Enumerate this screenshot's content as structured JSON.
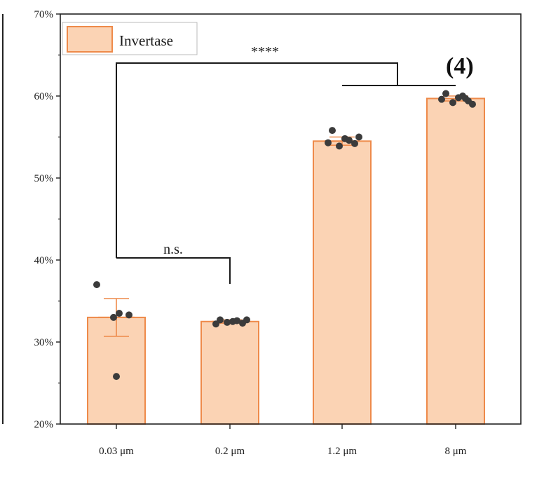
{
  "chart_data": {
    "type": "bar",
    "categories": [
      "0.03 μm",
      "0.2 μm",
      "1.2 μm",
      "8 μm"
    ],
    "series": [
      {
        "name": "Invertase",
        "values": [
          33.0,
          32.5,
          54.5,
          59.7
        ],
        "errors": [
          2.3,
          0.2,
          0.5,
          0.3
        ],
        "points": [
          [
            37.0,
            33.5,
            33.3,
            33.0,
            25.8
          ],
          [
            32.7,
            32.5,
            32.3,
            32.4,
            32.6,
            32.2,
            32.7
          ],
          [
            55.8,
            54.8,
            54.2,
            53.9,
            54.6,
            54.3,
            55.0
          ],
          [
            60.3,
            59.8,
            59.4,
            59.2,
            60.0,
            59.6,
            59.0,
            59.7
          ]
        ]
      }
    ],
    "ylim": [
      20,
      70
    ],
    "yticks": [
      20,
      30,
      40,
      50,
      60,
      70
    ],
    "ytick_labels": [
      "20%",
      "30%",
      "40%",
      "50%",
      "60%",
      "70%"
    ],
    "xlabel": "",
    "ylabel": "",
    "legend": "top-left",
    "panel_label": "(4)",
    "significance": [
      {
        "from": "0.03 μm",
        "to": "0.2 μm",
        "label": "n.s."
      },
      {
        "from": "0.03 μm",
        "to": "1.2 μm & 8 μm",
        "label": "****"
      }
    ],
    "colors": {
      "bar_fill": "#fbd3b4",
      "bar_edge": "#ee8a4a",
      "error_bar": "#ee8a4a",
      "points": "#3b3b3b",
      "bracket": "#1a1a1a",
      "legend_fill": "#fbd3b4"
    }
  }
}
